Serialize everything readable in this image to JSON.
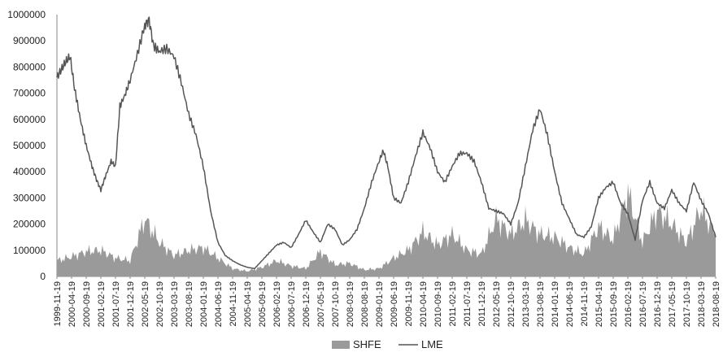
{
  "chart_data": {
    "type": "area+line",
    "title": "",
    "xlabel": "",
    "ylabel": "",
    "ylim": [
      0,
      1000000
    ],
    "yticks": [
      "0",
      "100000",
      "200000",
      "300000",
      "400000",
      "500000",
      "600000",
      "700000",
      "800000",
      "900000",
      "1000000"
    ],
    "xticks": [
      "1999-11-19",
      "2000-04-19",
      "2000-09-19",
      "2001-02-19",
      "2001-07-19",
      "2001-12-19",
      "2002-05-19",
      "2002-10-19",
      "2003-03-19",
      "2003-08-19",
      "2004-01-19",
      "2004-06-19",
      "2004-11-19",
      "2005-04-19",
      "2005-09-19",
      "2006-02-19",
      "2006-07-19",
      "2006-12-19",
      "2007-05-19",
      "2007-10-19",
      "2008-03-19",
      "2008-08-19",
      "2009-01-19",
      "2009-06-19",
      "2009-11-19",
      "2010-04-19",
      "2010-09-19",
      "2011-02-19",
      "2011-07-19",
      "2011-12-19",
      "2012-05-19",
      "2012-10-19",
      "2013-03-19",
      "2013-08-19",
      "2014-01-19",
      "2014-06-19",
      "2014-11-19",
      "2015-04-19",
      "2015-09-19",
      "2016-02-19",
      "2016-07-19",
      "2016-12-19",
      "2017-05-19",
      "2017-10-19",
      "2018-03-19",
      "2018-08-19"
    ],
    "legend": {
      "position": "bottom-center",
      "entries": [
        {
          "name": "SHFE",
          "marker": "area"
        },
        {
          "name": "LME",
          "marker": "line"
        }
      ]
    },
    "grid": false,
    "colors": {
      "SHFE": "#9a9a9a",
      "LME": "#555555"
    },
    "series": [
      {
        "name": "SHFE",
        "kind": "area",
        "x": [
          0,
          1,
          2,
          3,
          4,
          5,
          6,
          7,
          8,
          9,
          10,
          11,
          12,
          13,
          14,
          15,
          16,
          17,
          18,
          19,
          20,
          21,
          22,
          23,
          24,
          25,
          26,
          27,
          28,
          29,
          30,
          31,
          32,
          33,
          34,
          35,
          36,
          37,
          38,
          39,
          40,
          41,
          42,
          43,
          44,
          45
        ],
        "values": [
          60000,
          75000,
          95000,
          100000,
          70000,
          60000,
          220000,
          130000,
          80000,
          100000,
          110000,
          70000,
          30000,
          20000,
          35000,
          60000,
          40000,
          30000,
          95000,
          45000,
          50000,
          25000,
          30000,
          70000,
          100000,
          170000,
          120000,
          160000,
          100000,
          85000,
          220000,
          160000,
          215000,
          160000,
          150000,
          110000,
          85000,
          190000,
          140000,
          320000,
          130000,
          250000,
          200000,
          130000,
          260000,
          150000
        ]
      },
      {
        "name": "LME",
        "kind": "line",
        "x": [
          0,
          0.3,
          0.6,
          0.9,
          1.2,
          1.6,
          2.0,
          2.4,
          2.7,
          3.0,
          3.3,
          3.7,
          4.0,
          4.3,
          4.7,
          5.0,
          5.5,
          6.0,
          6.3,
          6.6,
          7.0,
          7.5,
          8.0,
          8.5,
          9.0,
          9.5,
          10.0,
          10.5,
          11.0,
          11.5,
          12.0,
          12.5,
          13.0,
          13.5,
          14.0,
          14.5,
          15.0,
          15.5,
          16.0,
          16.5,
          17.0,
          17.5,
          18.0,
          18.5,
          19.0,
          19.5,
          20.0,
          20.5,
          21.0,
          21.5,
          22.0,
          22.3,
          22.6,
          23.0,
          23.5,
          24.0,
          24.5,
          25.0,
          25.5,
          26.0,
          26.5,
          27.0,
          27.5,
          28.0,
          28.5,
          29.0,
          29.5,
          30.0,
          30.5,
          31.0,
          31.5,
          32.0,
          32.5,
          33.0,
          33.5,
          34.0,
          34.5,
          35.0,
          35.5,
          36.0,
          36.5,
          37.0,
          37.5,
          38.0,
          38.5,
          39.0,
          39.5,
          40.0,
          40.5,
          41.0,
          41.5,
          42.0,
          42.5,
          43.0,
          43.5,
          44.0,
          44.5,
          45.0
        ],
        "values": [
          760000,
          790000,
          820000,
          840000,
          720000,
          600000,
          500000,
          420000,
          370000,
          330000,
          380000,
          440000,
          420000,
          650000,
          700000,
          750000,
          850000,
          960000,
          980000,
          880000,
          860000,
          870000,
          840000,
          740000,
          620000,
          540000,
          420000,
          250000,
          130000,
          80000,
          60000,
          45000,
          35000,
          30000,
          60000,
          90000,
          120000,
          130000,
          110000,
          160000,
          215000,
          170000,
          130000,
          200000,
          180000,
          120000,
          140000,
          180000,
          260000,
          360000,
          440000,
          480000,
          420000,
          300000,
          280000,
          360000,
          460000,
          550000,
          490000,
          400000,
          360000,
          420000,
          470000,
          470000,
          440000,
          360000,
          260000,
          250000,
          240000,
          200000,
          280000,
          420000,
          560000,
          640000,
          540000,
          400000,
          280000,
          220000,
          160000,
          150000,
          190000,
          300000,
          340000,
          360000,
          280000,
          240000,
          140000,
          290000,
          360000,
          280000,
          260000,
          330000,
          280000,
          250000,
          360000,
          290000,
          240000,
          150000
        ]
      }
    ]
  }
}
